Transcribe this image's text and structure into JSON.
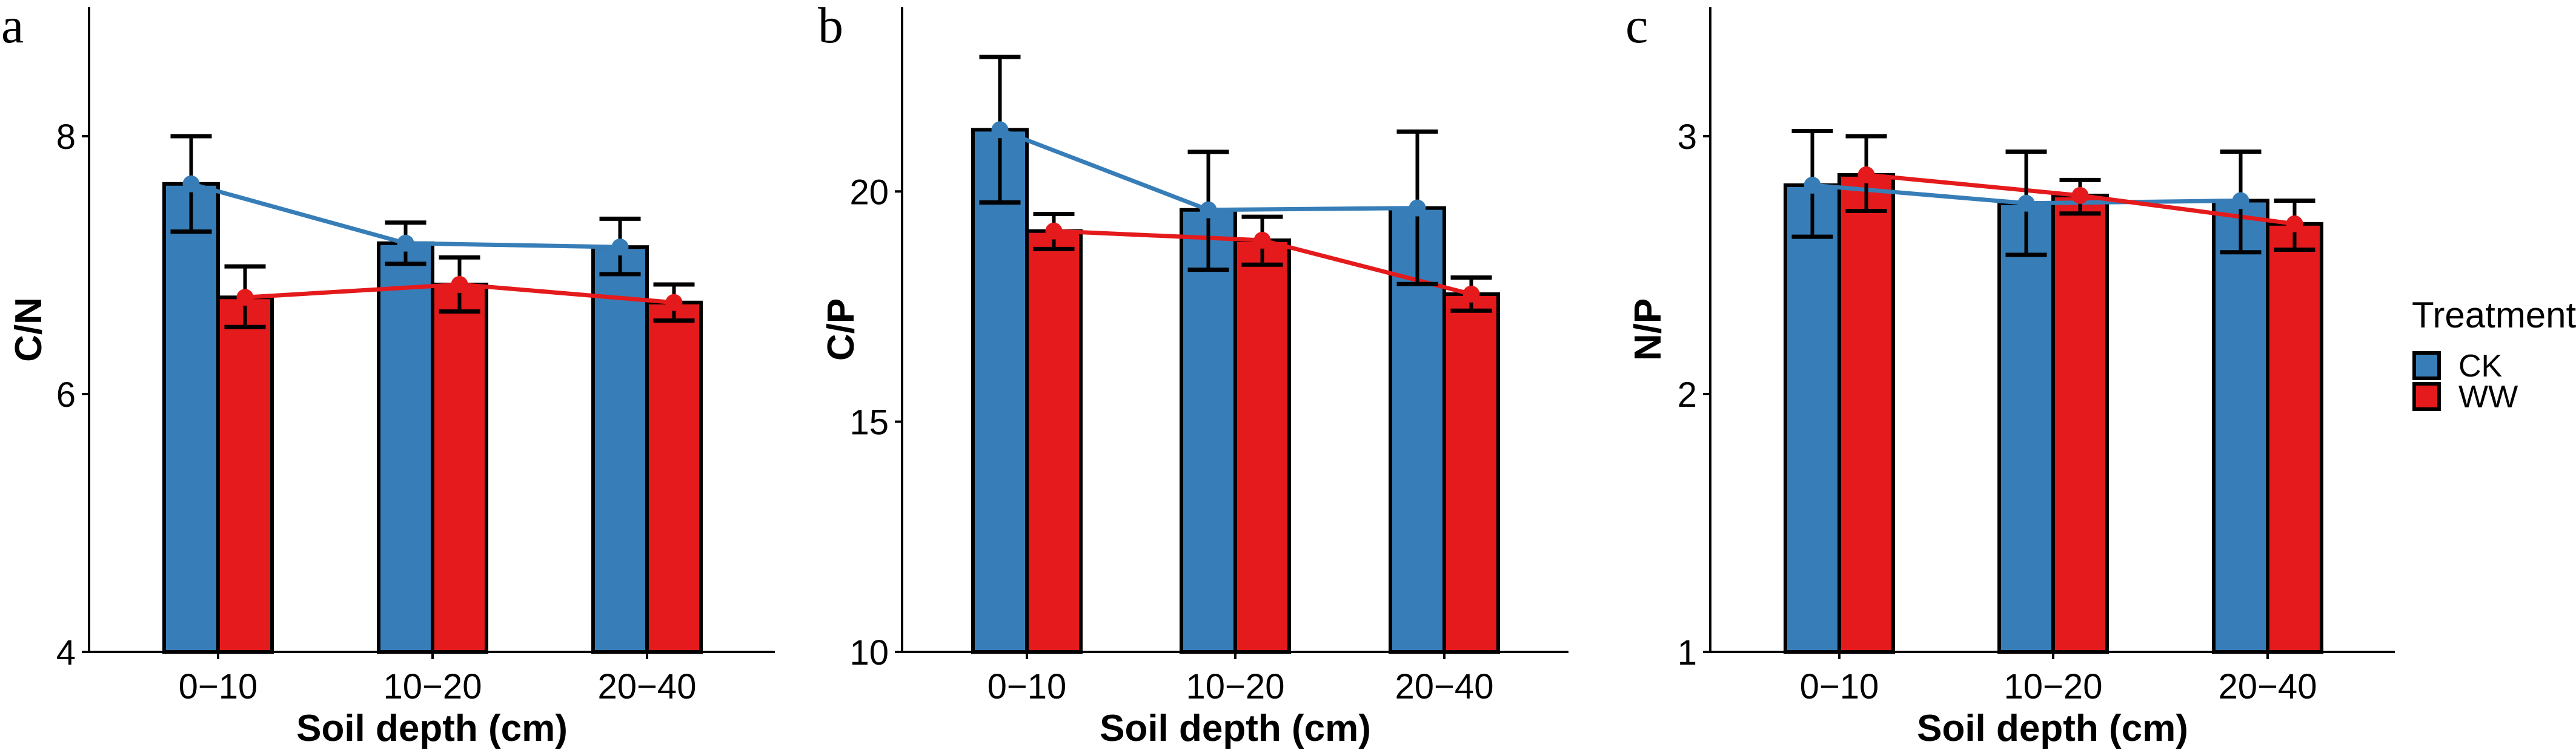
{
  "colors": {
    "CK": "#377EB8",
    "WW": "#E41A1C",
    "axis": "#000000"
  },
  "legend": {
    "title": "Treatment",
    "items": [
      {
        "key": "CK",
        "label": "CK"
      },
      {
        "key": "WW",
        "label": "WW"
      }
    ]
  },
  "chart_data": [
    {
      "type": "bar",
      "panel_label": "a",
      "title": "",
      "xlabel": "Soil depth (cm)",
      "ylabel": "C/N",
      "categories": [
        "0−10",
        "10−20",
        "20−40"
      ],
      "ylim": [
        4,
        9
      ],
      "yticks": [
        4,
        6,
        8
      ],
      "ytick_labels": [
        "4",
        "6",
        "8"
      ],
      "grid": false,
      "overlay": "line connecting means per treatment",
      "series": [
        {
          "name": "CK",
          "values": [
            7.63,
            7.17,
            7.14
          ],
          "err_low": [
            7.26,
            7.01,
            6.93
          ],
          "err_high": [
            8.0,
            7.33,
            7.36
          ]
        },
        {
          "name": "WW",
          "values": [
            6.75,
            6.85,
            6.71
          ],
          "err_low": [
            6.52,
            6.64,
            6.57
          ],
          "err_high": [
            6.99,
            7.06,
            6.85
          ]
        }
      ]
    },
    {
      "type": "bar",
      "panel_label": "b",
      "title": "",
      "xlabel": "Soil depth (cm)",
      "ylabel": "C/P",
      "categories": [
        "0−10",
        "10−20",
        "20−40"
      ],
      "ylim": [
        10,
        24
      ],
      "yticks": [
        10,
        15,
        20
      ],
      "ytick_labels": [
        "10",
        "15",
        "20"
      ],
      "grid": false,
      "overlay": "line connecting means per treatment",
      "series": [
        {
          "name": "CK",
          "values": [
            21.34,
            19.6,
            19.64
          ],
          "err_low": [
            19.76,
            18.3,
            17.99
          ],
          "err_high": [
            22.92,
            20.86,
            21.3
          ]
        },
        {
          "name": "WW",
          "values": [
            19.14,
            18.94,
            17.77
          ],
          "err_low": [
            18.75,
            18.41,
            17.41
          ],
          "err_high": [
            19.51,
            19.45,
            18.13
          ]
        }
      ]
    },
    {
      "type": "bar",
      "panel_label": "c",
      "title": "",
      "xlabel": "Soil depth (cm)",
      "ylabel": "N/P",
      "categories": [
        "0−10",
        "10−20",
        "20−40"
      ],
      "ylim": [
        1,
        3.5
      ],
      "yticks": [
        1,
        2,
        3
      ],
      "ytick_labels": [
        "1",
        "2",
        "3"
      ],
      "grid": false,
      "overlay": "line connecting means per treatment",
      "legend_position": "right",
      "series": [
        {
          "name": "CK",
          "values": [
            2.81,
            2.74,
            2.75
          ],
          "err_low": [
            2.61,
            2.54,
            2.55
          ],
          "err_high": [
            3.02,
            2.94,
            2.94
          ]
        },
        {
          "name": "WW",
          "values": [
            2.85,
            2.77,
            2.66
          ],
          "err_low": [
            2.71,
            2.7,
            2.56
          ],
          "err_high": [
            3.0,
            2.83,
            2.75
          ]
        }
      ]
    }
  ]
}
